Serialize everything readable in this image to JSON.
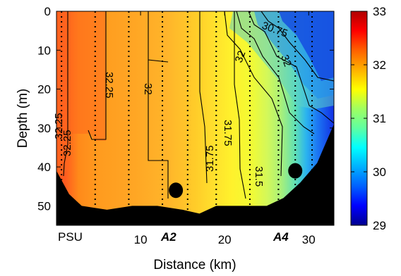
{
  "chart_data": {
    "type": "heatmap",
    "xlabel": "Distance (km)",
    "ylabel": "Depth (m)",
    "xlim": [
      0,
      33
    ],
    "ylim": [
      55,
      0
    ],
    "y_reversed": true,
    "x_ticks": [
      10,
      20,
      30
    ],
    "y_ticks": [
      0,
      10,
      20,
      30,
      40,
      50
    ],
    "unit_label": "PSU",
    "colorbar": {
      "range": [
        29,
        33
      ],
      "ticks": [
        29,
        30,
        31,
        32,
        33
      ],
      "colormap": "jet"
    },
    "contour_labels": [
      "32.25",
      "32.25",
      "32.25",
      "32",
      "31.75",
      "31.75",
      "31.5",
      "32",
      "32",
      "30.75"
    ],
    "station_labels": [
      {
        "label": "A2",
        "x": 12.2
      },
      {
        "label": "A4",
        "x": 27.3
      }
    ],
    "stations_x": [
      0.6,
      4.6,
      8.6,
      12.6,
      15.6,
      19.0,
      23.0,
      26.4,
      28.4,
      30.4
    ],
    "bottom_profile": [
      [
        0,
        41
      ],
      [
        1.5,
        47
      ],
      [
        3,
        50
      ],
      [
        6,
        51
      ],
      [
        9,
        50
      ],
      [
        12,
        50
      ],
      [
        15,
        51
      ],
      [
        17,
        52
      ],
      [
        19,
        50
      ],
      [
        22,
        50
      ],
      [
        25,
        50
      ],
      [
        27,
        48
      ],
      [
        29,
        44
      ],
      [
        31,
        39
      ],
      [
        33,
        29
      ]
    ],
    "instruments": [
      {
        "x": 14.2,
        "depth": 46
      },
      {
        "x": 28.4,
        "depth": 41
      }
    ],
    "salinity_zones": [
      {
        "x_range": [
          0,
          0.7
        ],
        "salinity": 32.4
      },
      {
        "x_range": [
          0.7,
          5
        ],
        "salinity": 32.25
      },
      {
        "x_range": [
          5,
          9
        ],
        "salinity": 32.1
      },
      {
        "x_range": [
          9,
          14
        ],
        "salinity": 31.95
      },
      {
        "x_range": [
          14,
          17
        ],
        "salinity": 31.8
      },
      {
        "x_range": [
          17,
          21
        ],
        "salinity": 31.6
      },
      {
        "x_range": [
          21,
          24
        ],
        "salinity": 31.45
      },
      {
        "x_range": [
          24,
          27
        ],
        "salinity": 31.2
      },
      {
        "x_range": [
          27,
          30
        ],
        "salinity": 30.7
      },
      {
        "x_range": [
          30,
          33
        ],
        "salinity": 29.6
      }
    ]
  }
}
